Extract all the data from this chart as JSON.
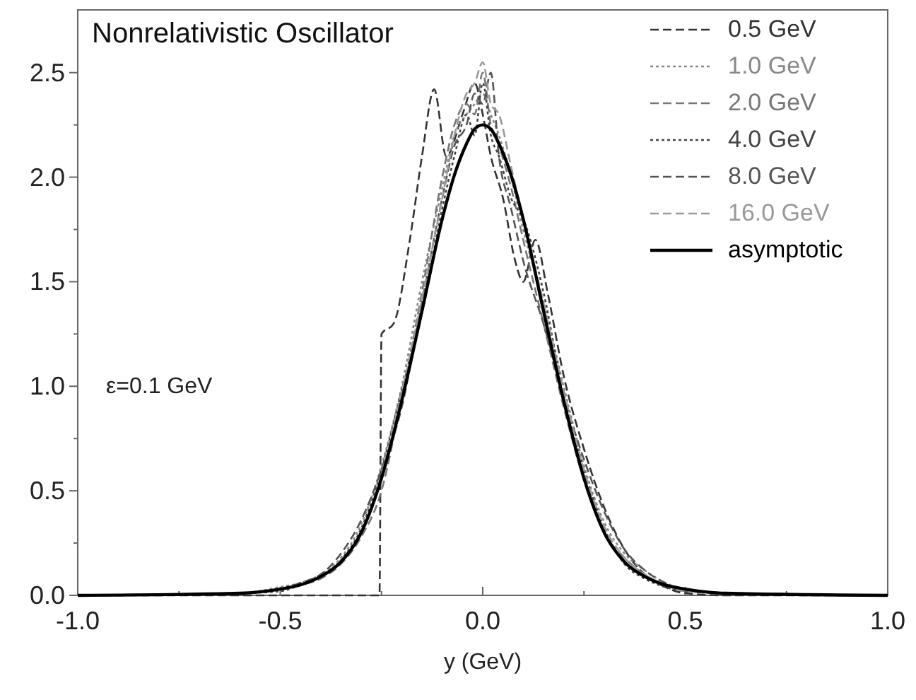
{
  "chart_data": {
    "type": "line",
    "title": "Nonrelativistic Oscillator",
    "xlabel": "y (GeV)",
    "annotations": [
      "ε=0.1 GeV"
    ],
    "x": [
      -1,
      -0.6,
      -0.5,
      -0.45,
      -0.4,
      -0.35,
      -0.3,
      -0.25,
      -0.2,
      -0.15,
      -0.1,
      -0.07,
      -0.04,
      -0.02,
      0,
      0.02,
      0.04,
      0.07,
      0.1,
      0.15,
      0.2,
      0.25,
      0.3,
      0.35,
      0.4,
      0.45,
      0.5,
      0.6,
      1
    ],
    "series": [
      {
        "name": "0.5 GeV",
        "color": "#333333",
        "line_style": "dashed",
        "x": [
          -1,
          -0.255,
          -0.25,
          -0.22,
          -0.18,
          -0.15,
          -0.12,
          -0.09,
          -0.05,
          -0.02,
          0,
          0.02,
          0.05,
          0.08,
          0.1,
          0.13,
          0.16,
          0.2,
          0.25,
          0.3,
          0.35,
          0.4,
          0.45,
          0.5,
          0.6,
          1
        ],
        "values": [
          0,
          0,
          1.25,
          1.3,
          1.7,
          2.1,
          2.42,
          2.1,
          2.3,
          2.45,
          2.3,
          2.1,
          1.9,
          1.6,
          1.5,
          1.7,
          1.45,
          1.05,
          0.7,
          0.42,
          0.22,
          0.1,
          0.04,
          0.01,
          0,
          0
        ]
      },
      {
        "name": "1.0 GeV",
        "color": "#888888",
        "line_style": "dotted",
        "values": [
          0,
          0.01,
          0.04,
          0.06,
          0.1,
          0.18,
          0.34,
          0.62,
          1.0,
          1.5,
          1.95,
          2.2,
          2.3,
          2.35,
          2.4,
          2.3,
          2.2,
          2.0,
          1.75,
          1.4,
          1.0,
          0.62,
          0.35,
          0.2,
          0.12,
          0.06,
          0.03,
          0.01,
          0
        ]
      },
      {
        "name": "2.0 GeV",
        "color": "#777777",
        "line_style": "dashed",
        "values": [
          0,
          0.01,
          0.03,
          0.05,
          0.08,
          0.15,
          0.28,
          0.5,
          0.95,
          1.45,
          2.0,
          2.25,
          2.35,
          2.3,
          2.5,
          2.25,
          2.15,
          1.95,
          1.7,
          1.3,
          0.9,
          0.55,
          0.3,
          0.18,
          0.1,
          0.05,
          0.02,
          0.01,
          0
        ]
      },
      {
        "name": "4.0 GeV",
        "color": "#444444",
        "line_style": "dotted",
        "values": [
          0,
          0.01,
          0.02,
          0.05,
          0.09,
          0.17,
          0.32,
          0.6,
          0.98,
          1.35,
          1.85,
          2.1,
          2.3,
          2.2,
          2.45,
          2.2,
          2.1,
          1.9,
          1.8,
          1.45,
          0.95,
          0.6,
          0.32,
          0.15,
          0.08,
          0.04,
          0.02,
          0.01,
          0
        ]
      },
      {
        "name": "8.0 GeV",
        "color": "#555555",
        "line_style": "dashed",
        "values": [
          0,
          0.01,
          0.03,
          0.06,
          0.1,
          0.2,
          0.36,
          0.6,
          0.9,
          1.4,
          1.9,
          2.15,
          2.25,
          2.4,
          2.35,
          2.5,
          2.1,
          1.85,
          1.6,
          1.3,
          0.95,
          0.65,
          0.4,
          0.22,
          0.12,
          0.06,
          0.02,
          0.01,
          0
        ]
      },
      {
        "name": "16.0 GeV",
        "color": "#999999",
        "line_style": "dashed",
        "values": [
          0,
          0.01,
          0.03,
          0.05,
          0.09,
          0.17,
          0.3,
          0.58,
          0.97,
          1.42,
          1.9,
          2.2,
          2.4,
          2.45,
          2.55,
          2.35,
          2.3,
          2.05,
          1.8,
          1.4,
          0.98,
          0.6,
          0.33,
          0.18,
          0.1,
          0.05,
          0.02,
          0.01,
          0
        ]
      },
      {
        "name": "asymptotic",
        "color": "#000000",
        "line_style": "solid",
        "values": [
          0,
          0.01,
          0.03,
          0.05,
          0.09,
          0.16,
          0.3,
          0.56,
          0.93,
          1.36,
          1.8,
          2.01,
          2.16,
          2.23,
          2.25,
          2.23,
          2.16,
          2.01,
          1.8,
          1.36,
          0.93,
          0.56,
          0.3,
          0.16,
          0.09,
          0.05,
          0.03,
          0.01,
          0
        ]
      }
    ],
    "xlim": [
      -1,
      1
    ],
    "xticks": [
      {
        "value": -1,
        "label": "-1.0"
      },
      {
        "value": -0.75,
        "label": null
      },
      {
        "value": -0.5,
        "label": "-0.5"
      },
      {
        "value": -0.25,
        "label": null
      },
      {
        "value": 0,
        "label": "0.0"
      },
      {
        "value": 0.25,
        "label": null
      },
      {
        "value": 0.5,
        "label": "0.5"
      },
      {
        "value": 0.75,
        "label": null
      },
      {
        "value": 1,
        "label": "1.0"
      }
    ],
    "ylim": [
      0,
      2.8
    ],
    "yticks": [
      {
        "value": 0,
        "label": "0.0"
      },
      {
        "value": 0.25,
        "label": null
      },
      {
        "value": 0.5,
        "label": "0.5"
      },
      {
        "value": 0.75,
        "label": null
      },
      {
        "value": 1,
        "label": "1.0"
      },
      {
        "value": 1.25,
        "label": null
      },
      {
        "value": 1.5,
        "label": "1.5"
      },
      {
        "value": 1.75,
        "label": null
      },
      {
        "value": 2,
        "label": "2.0"
      },
      {
        "value": 2.25,
        "label": null
      },
      {
        "value": 2.5,
        "label": "2.5"
      }
    ],
    "grid": false,
    "legend": "top right"
  }
}
